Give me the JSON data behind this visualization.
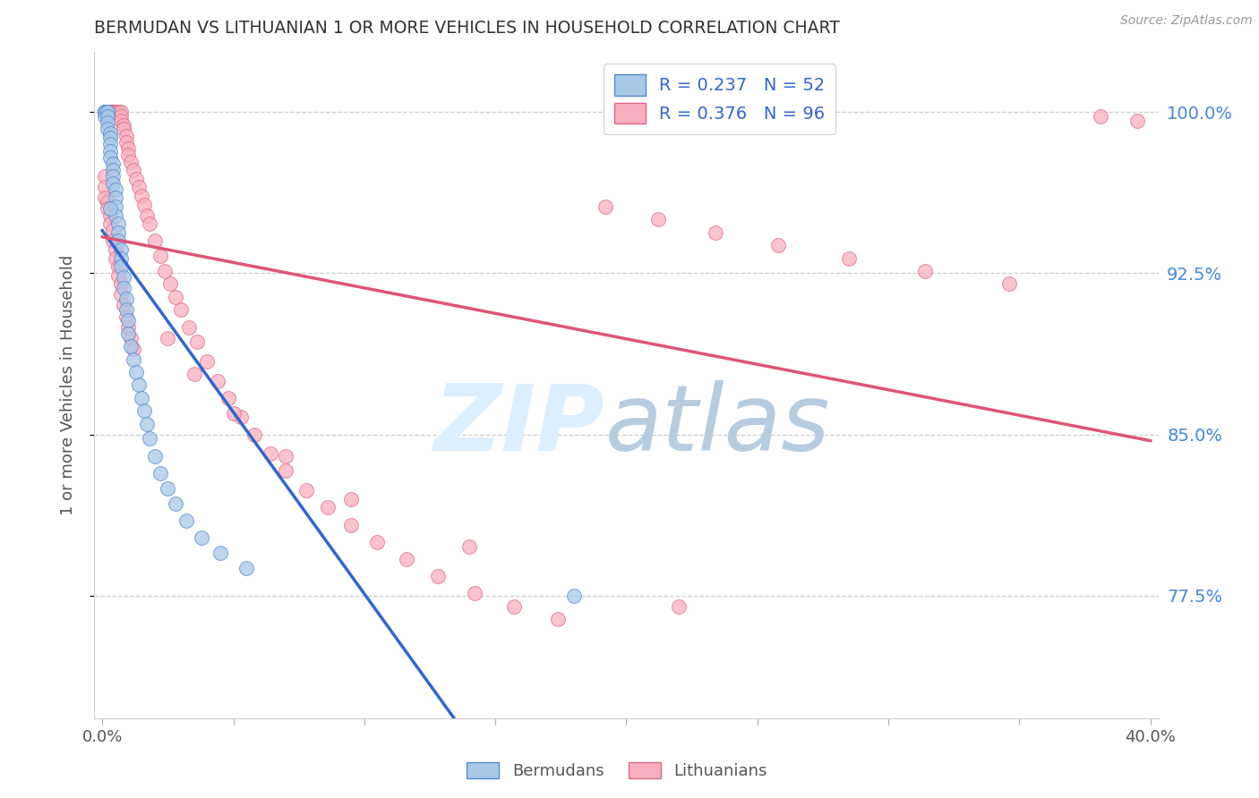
{
  "title": "BERMUDAN VS LITHUANIAN 1 OR MORE VEHICLES IN HOUSEHOLD CORRELATION CHART",
  "source": "Source: ZipAtlas.com",
  "ylabel": "1 or more Vehicles in Household",
  "y_tick_labels": [
    "77.5%",
    "85.0%",
    "92.5%",
    "100.0%"
  ],
  "y_tick_values": [
    0.775,
    0.85,
    0.925,
    1.0
  ],
  "x_tick_labels": [
    "0.0%",
    "",
    "",
    "",
    "",
    "",
    "",
    "",
    "40.0%"
  ],
  "x_tick_values": [
    0.0,
    0.05,
    0.1,
    0.15,
    0.2,
    0.25,
    0.3,
    0.35,
    0.4
  ],
  "x_lim": [
    -0.003,
    0.403
  ],
  "y_lim": [
    0.718,
    1.028
  ],
  "bermudan_color": "#a8c8e8",
  "bermudan_edge": "#5588cc",
  "lithuanian_color": "#f8b0c0",
  "lithuanian_edge": "#dd6688",
  "blue_line_color": "#3366cc",
  "pink_line_color": "#dd5577",
  "watermark_zip_color": "#ddeeff",
  "watermark_atlas_color": "#b8cce0",
  "right_axis_color": "#4488dd",
  "R_bermudan": 0.237,
  "N_bermudan": 52,
  "R_lithuanian": 0.376,
  "N_lithuanian": 96,
  "bermudans_x": [
    0.001,
    0.001,
    0.001,
    0.001,
    0.002,
    0.002,
    0.002,
    0.002,
    0.002,
    0.003,
    0.003,
    0.003,
    0.003,
    0.003,
    0.004,
    0.004,
    0.004,
    0.004,
    0.005,
    0.005,
    0.005,
    0.005,
    0.006,
    0.006,
    0.006,
    0.007,
    0.007,
    0.007,
    0.008,
    0.008,
    0.009,
    0.009,
    0.01,
    0.01,
    0.011,
    0.012,
    0.013,
    0.014,
    0.015,
    0.016,
    0.017,
    0.018,
    0.02,
    0.022,
    0.025,
    0.028,
    0.032,
    0.038,
    0.045,
    0.055,
    0.003,
    0.18
  ],
  "bermudans_y": [
    1.0,
    1.0,
    1.0,
    0.998,
    1.0,
    1.0,
    0.998,
    0.995,
    0.992,
    0.99,
    0.988,
    0.985,
    0.982,
    0.979,
    0.976,
    0.973,
    0.97,
    0.967,
    0.964,
    0.96,
    0.956,
    0.952,
    0.948,
    0.944,
    0.94,
    0.936,
    0.932,
    0.928,
    0.923,
    0.918,
    0.913,
    0.908,
    0.903,
    0.897,
    0.891,
    0.885,
    0.879,
    0.873,
    0.867,
    0.861,
    0.855,
    0.848,
    0.84,
    0.832,
    0.825,
    0.818,
    0.81,
    0.802,
    0.795,
    0.788,
    0.955,
    0.775
  ],
  "lithuanians_x": [
    0.001,
    0.001,
    0.002,
    0.002,
    0.002,
    0.003,
    0.003,
    0.003,
    0.003,
    0.004,
    0.004,
    0.004,
    0.005,
    0.005,
    0.005,
    0.005,
    0.006,
    0.006,
    0.006,
    0.007,
    0.007,
    0.007,
    0.008,
    0.008,
    0.009,
    0.009,
    0.01,
    0.01,
    0.011,
    0.012,
    0.013,
    0.014,
    0.015,
    0.016,
    0.017,
    0.018,
    0.02,
    0.022,
    0.024,
    0.026,
    0.028,
    0.03,
    0.033,
    0.036,
    0.04,
    0.044,
    0.048,
    0.053,
    0.058,
    0.064,
    0.07,
    0.078,
    0.086,
    0.095,
    0.105,
    0.116,
    0.128,
    0.142,
    0.157,
    0.174,
    0.001,
    0.001,
    0.001,
    0.002,
    0.002,
    0.003,
    0.003,
    0.004,
    0.004,
    0.005,
    0.005,
    0.006,
    0.006,
    0.007,
    0.007,
    0.008,
    0.009,
    0.01,
    0.011,
    0.012,
    0.192,
    0.212,
    0.234,
    0.258,
    0.285,
    0.314,
    0.346,
    0.381,
    0.395,
    0.025,
    0.035,
    0.05,
    0.07,
    0.095,
    0.14,
    0.22
  ],
  "lithuanians_y": [
    1.0,
    1.0,
    1.0,
    1.0,
    1.0,
    1.0,
    1.0,
    1.0,
    1.0,
    1.0,
    1.0,
    1.0,
    1.0,
    1.0,
    1.0,
    1.0,
    1.0,
    1.0,
    1.0,
    1.0,
    0.998,
    0.996,
    0.994,
    0.992,
    0.989,
    0.986,
    0.983,
    0.98,
    0.977,
    0.973,
    0.969,
    0.965,
    0.961,
    0.957,
    0.952,
    0.948,
    0.94,
    0.933,
    0.926,
    0.92,
    0.914,
    0.908,
    0.9,
    0.893,
    0.884,
    0.875,
    0.867,
    0.858,
    0.85,
    0.841,
    0.833,
    0.824,
    0.816,
    0.808,
    0.8,
    0.792,
    0.784,
    0.776,
    0.77,
    0.764,
    0.97,
    0.965,
    0.96,
    0.958,
    0.955,
    0.952,
    0.948,
    0.945,
    0.94,
    0.936,
    0.932,
    0.928,
    0.924,
    0.92,
    0.915,
    0.91,
    0.905,
    0.9,
    0.895,
    0.89,
    0.956,
    0.95,
    0.944,
    0.938,
    0.932,
    0.926,
    0.92,
    0.998,
    0.996,
    0.895,
    0.878,
    0.86,
    0.84,
    0.82,
    0.798,
    0.77
  ]
}
